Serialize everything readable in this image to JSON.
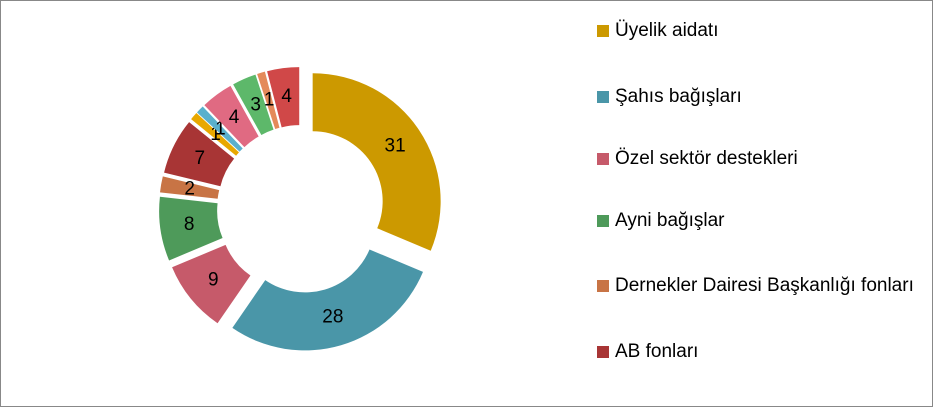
{
  "chart_data": {
    "type": "pie",
    "categories": [
      "Üyelik aidatı",
      "Şahıs bağışları",
      "Özel sektör destekleri",
      "Ayni bağışlar",
      "Dernekler Dairesi Başkanlığı fonları",
      "AB fonları",
      null,
      null,
      null,
      null,
      null,
      null
    ],
    "values": [
      31,
      28,
      9,
      8,
      2,
      7,
      1,
      1,
      4,
      3,
      1,
      4
    ],
    "colors": [
      "#cc9900",
      "#4a96a8",
      "#c65a6a",
      "#4e9a5a",
      "#c87445",
      "#a83535",
      "#e8a800",
      "#5ab0cc",
      "#e06a82",
      "#5db86a",
      "#e48a5a",
      "#d04848"
    ],
    "donut": true,
    "legend": "right"
  }
}
